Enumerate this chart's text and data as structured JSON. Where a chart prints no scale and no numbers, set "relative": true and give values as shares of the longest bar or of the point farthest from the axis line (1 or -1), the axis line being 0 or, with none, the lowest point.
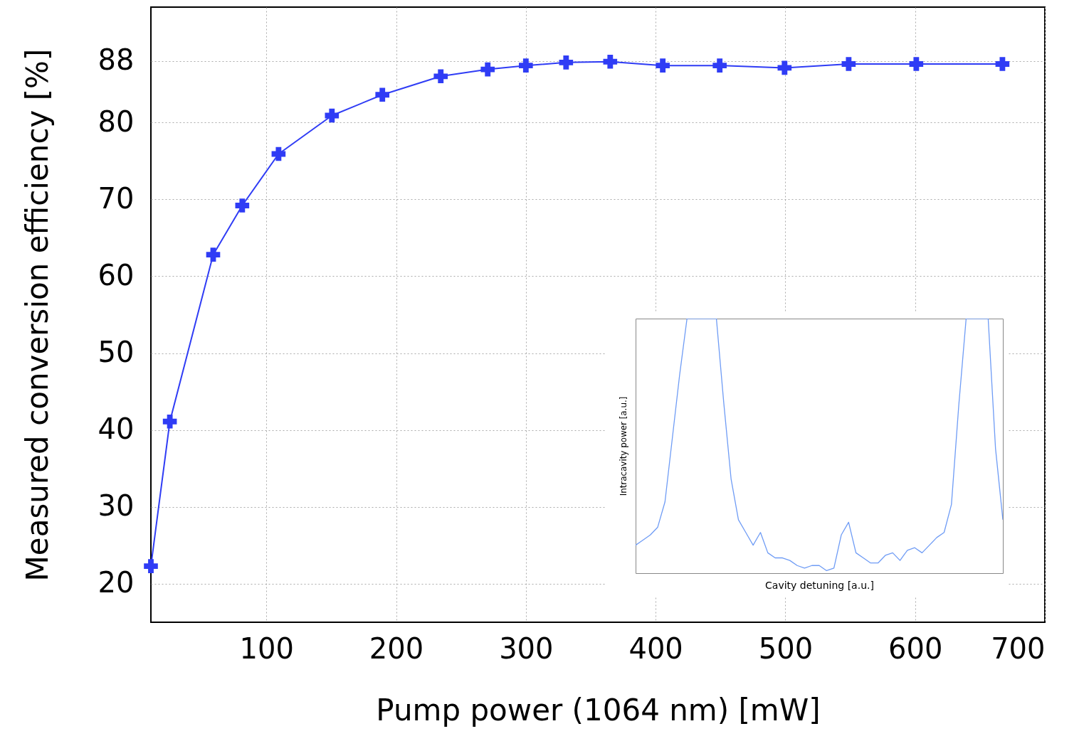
{
  "chart_data": [
    {
      "type": "line",
      "xlabel": "Pump power (1064 nm) [mW]",
      "ylabel": "Measured conversion efficiency [%]",
      "x": [
        11,
        25.6,
        59,
        81.4,
        109.4,
        150.5,
        189.4,
        234.4,
        270.6,
        300,
        331,
        365,
        405.5,
        449.4,
        499.4,
        548.8,
        600.9,
        667.3
      ],
      "values": [
        22.3,
        41.1,
        62.8,
        69.2,
        75.9,
        80.9,
        83.6,
        86.0,
        86.9,
        87.4,
        87.8,
        87.9,
        87.4,
        87.4,
        87.1,
        87.6,
        87.6,
        87.6
      ],
      "color": "#2f3cf5",
      "marker": "cross",
      "xlim": [
        11,
        700
      ],
      "ylim": [
        15,
        95
      ],
      "xticks": [
        100,
        200,
        300,
        400,
        500,
        600,
        700
      ],
      "yticks": [
        20,
        30,
        40,
        50,
        60,
        70,
        80,
        88
      ],
      "grid": true
    },
    {
      "type": "line",
      "xlabel": "Cavity detuning [a.u.]",
      "ylabel": "Intracavity power [a.u.]",
      "relative": true,
      "color": "#6f9cf5",
      "categories": [
        null,
        null,
        null,
        null,
        null,
        null,
        null,
        null,
        null,
        null,
        null,
        null,
        null,
        null,
        null,
        null,
        null,
        null,
        null,
        null,
        null,
        null,
        null,
        null,
        null,
        null,
        null,
        null,
        null,
        null,
        null,
        null,
        null,
        null,
        null,
        null,
        null,
        null,
        null,
        null,
        null,
        null,
        null,
        null,
        null,
        null,
        null,
        null,
        null,
        null,
        null
      ],
      "values": [
        0.11,
        0.13,
        0.15,
        0.18,
        0.28,
        0.53,
        0.78,
        1,
        1,
        1,
        1,
        1,
        0.67,
        0.37,
        0.21,
        0.16,
        0.11,
        0.16,
        0.08,
        0.06,
        0.06,
        0.05,
        0.03,
        0.02,
        0.03,
        0.03,
        0.01,
        0.02,
        0.15,
        0.2,
        0.08,
        0.06,
        0.04,
        0.04,
        0.07,
        0.08,
        0.05,
        0.09,
        0.1,
        0.08,
        0.11,
        0.14,
        0.16,
        0.27,
        0.66,
        1,
        1,
        1,
        1,
        0.49,
        0.21
      ]
    }
  ]
}
